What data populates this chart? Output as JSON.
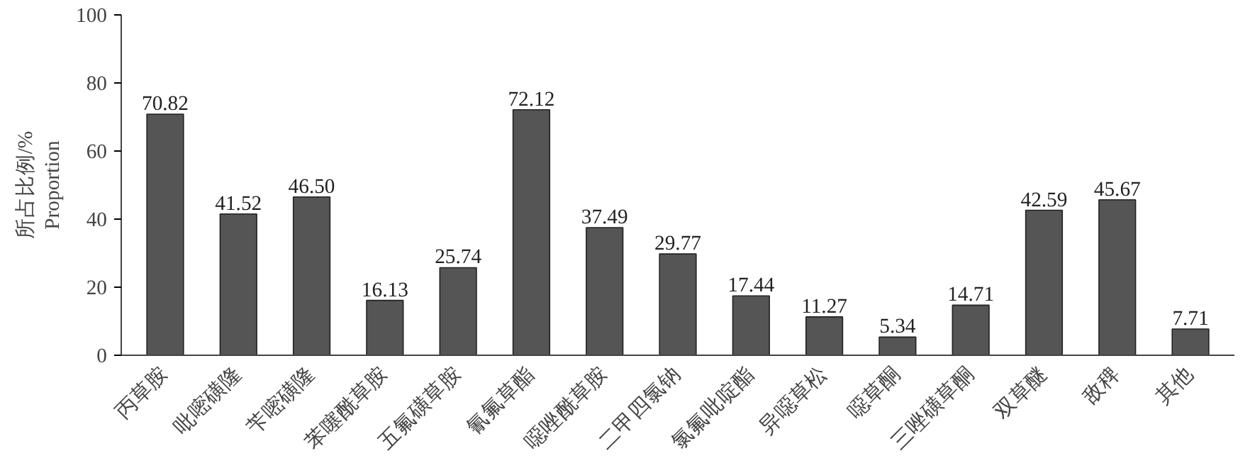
{
  "chart_data": {
    "type": "bar",
    "ylabel": "所占比例/%\nProportion",
    "categories": [
      "丙草胺",
      "吡嘧磺隆",
      "苄嘧磺隆",
      "苯噻酰草胺",
      "五氟磺草胺",
      "氰氟草酯",
      "噁唑酰草胺",
      "二甲四氯钠",
      "氯氟吡啶酯",
      "异噁草松",
      "噁草酮",
      "三唑磺草酮",
      "双草醚",
      "敌稗",
      "其他"
    ],
    "values": [
      70.82,
      41.52,
      46.5,
      16.13,
      25.74,
      72.12,
      37.49,
      29.77,
      17.44,
      11.27,
      5.34,
      14.71,
      42.59,
      45.67,
      7.71
    ],
    "value_labels": [
      "70.82",
      "41.52",
      "46.50",
      "16.13",
      "25.74",
      "72.12",
      "37.49",
      "29.77",
      "17.44",
      "11.27",
      "5.34",
      "14.71",
      "42.59",
      "45.67",
      "7.71"
    ],
    "color": "#555555",
    "ylim": [
      0,
      100
    ],
    "yticks": [
      0,
      20,
      40,
      60,
      80,
      100
    ],
    "grid": false
  }
}
